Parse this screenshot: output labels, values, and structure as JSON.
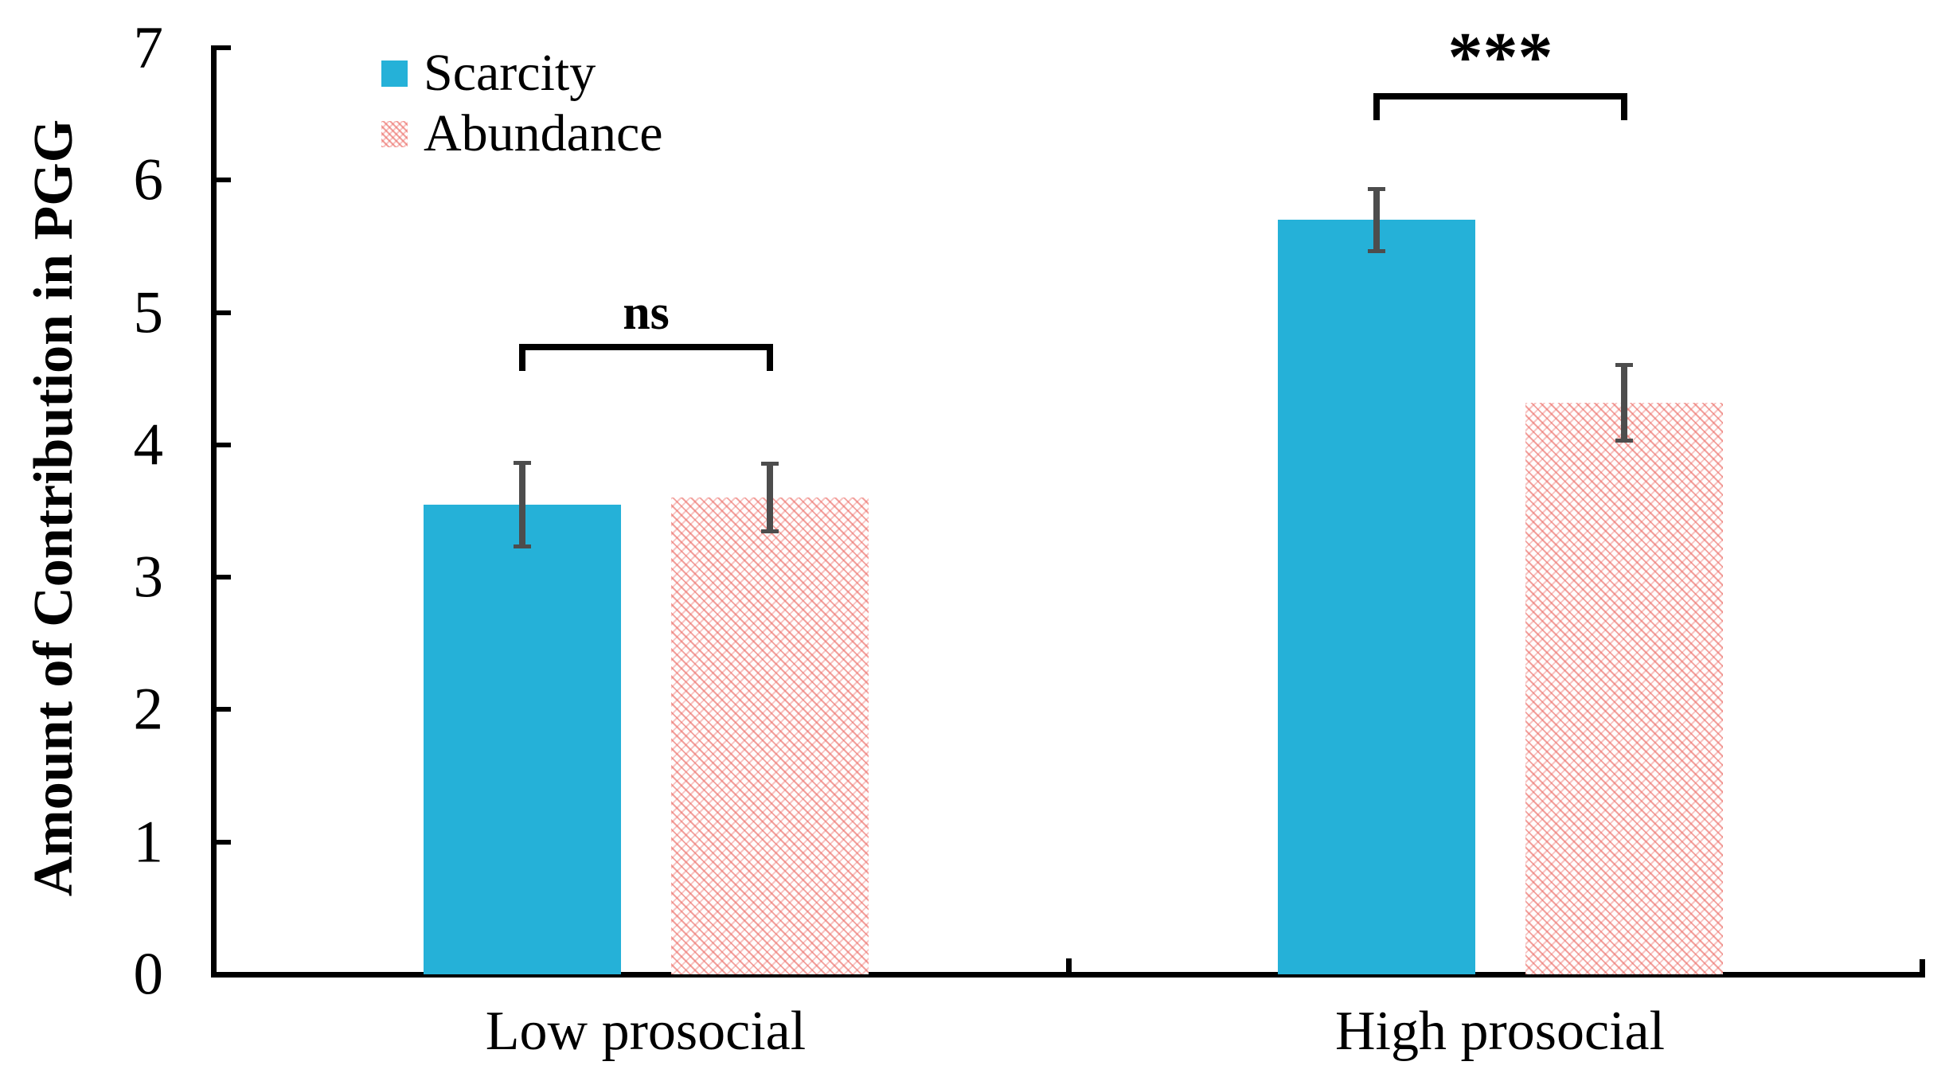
{
  "chart_data": {
    "type": "bar",
    "title": "",
    "ylabel": "Amount of Contribution in PGG",
    "xlabel": "",
    "categories": [
      "Low prosocial",
      "High prosocial"
    ],
    "series": [
      {
        "name": "Scarcity",
        "fill": "solid",
        "color": "#25B1D8",
        "values": [
          3.55,
          5.7
        ],
        "errors": [
          0.33,
          0.25
        ]
      },
      {
        "name": "Abundance",
        "fill": "hatch",
        "color": "#EB6862",
        "values": [
          3.6,
          4.32
        ],
        "errors": [
          0.27,
          0.3
        ]
      }
    ],
    "ylim": [
      0,
      7
    ],
    "yticks": [
      0,
      1,
      2,
      3,
      4,
      5,
      6,
      7
    ],
    "error_bar_color": "#4D4D4D",
    "significance": [
      {
        "category": "Low prosocial",
        "label": "ns",
        "bracket_y_value": 4.76
      },
      {
        "category": "High prosocial",
        "label": "***",
        "bracket_y_value": 6.66
      }
    ],
    "legend_position": "top-left-inside",
    "grid": false
  }
}
